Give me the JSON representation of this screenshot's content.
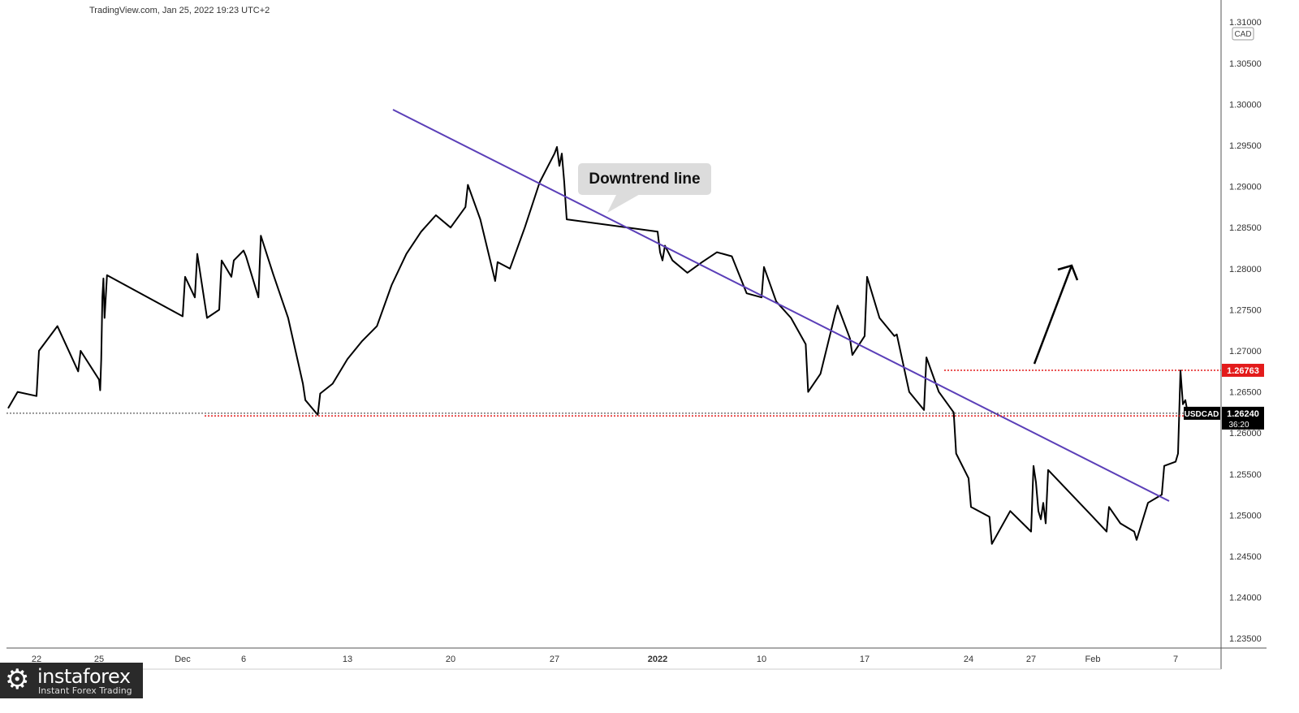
{
  "header": {
    "watermark": "TradingView.com, Jan 25, 2022 19:23 UTC+2"
  },
  "brand": {
    "logo_name": "instaforex",
    "tagline": "Instant Forex Trading",
    "icon": "gear-icon"
  },
  "colors": {
    "price_line": "#000000",
    "trend_line": "#5b3fb8",
    "level_red": "#e31b1b",
    "current_badge": "#000000",
    "axis_text": "#333333",
    "annotation_bg": "#dcdcdc"
  },
  "chart_data": {
    "type": "line",
    "symbol": "USDCAD",
    "currency": "CAD",
    "ylim": [
      1.232,
      1.315
    ],
    "y_ticks": [
      "1.31000",
      "1.30500",
      "1.30000",
      "1.29500",
      "1.29000",
      "1.28500",
      "1.28000",
      "1.27500",
      "1.27000",
      "1.26500",
      "1.26000",
      "1.25500",
      "1.25000",
      "1.24500",
      "1.24000",
      "1.23500"
    ],
    "x_ticks": [
      {
        "label": "22",
        "x": 2021.1122
      },
      {
        "label": "25",
        "x": 2021.1125
      },
      {
        "label": "Dec",
        "x": 2021.1201
      },
      {
        "label": "6",
        "x": 2021.1206
      },
      {
        "label": "13",
        "x": 2021.1213
      },
      {
        "label": "20",
        "x": 2021.122
      },
      {
        "label": "27",
        "x": 2021.1227
      },
      {
        "label": "2022",
        "x": 2022.0103
      },
      {
        "label": "10",
        "x": 2022.011
      },
      {
        "label": "17",
        "x": 2022.0117
      },
      {
        "label": "24",
        "x": 2022.0124
      },
      {
        "label": "27",
        "x": 2022.0127
      },
      {
        "label": "Feb",
        "x": 2022.0201
      },
      {
        "label": "7",
        "x": 2022.0207
      }
    ],
    "series": [
      {
        "name": "USDCAD",
        "points": [
          [
            2021.1119,
            1.263
          ],
          [
            2021.112,
            1.265
          ],
          [
            2021.1122,
            1.2645
          ],
          [
            2021.1122,
            1.27
          ],
          [
            2021.1123,
            1.273
          ],
          [
            2021.1124,
            1.2675
          ],
          [
            2021.1124,
            1.27
          ],
          [
            2021.1125,
            1.2665
          ],
          [
            2021.1126,
            1.2652
          ],
          [
            2021.1127,
            1.269
          ],
          [
            2021.1128,
            1.2765
          ],
          [
            2021.1129,
            1.2788
          ],
          [
            2021.113,
            1.274
          ],
          [
            2021.113,
            1.2792
          ],
          [
            2021.1201,
            1.2742
          ],
          [
            2021.1201,
            1.279
          ],
          [
            2021.1202,
            1.2765
          ],
          [
            2021.1202,
            1.2818
          ],
          [
            2021.1203,
            1.274
          ],
          [
            2021.1204,
            1.275
          ],
          [
            2021.1204,
            1.281
          ],
          [
            2021.1205,
            1.279
          ],
          [
            2021.1205,
            1.281
          ],
          [
            2021.1206,
            1.2822
          ],
          [
            2021.1206,
            1.2815
          ],
          [
            2021.1207,
            1.2765
          ],
          [
            2021.1207,
            1.284
          ],
          [
            2021.1208,
            1.2793
          ],
          [
            2021.1209,
            1.274
          ],
          [
            2021.121,
            1.266
          ],
          [
            2021.121,
            1.264
          ],
          [
            2021.1211,
            1.2622
          ],
          [
            2021.1211,
            1.2648
          ],
          [
            2021.1212,
            1.266
          ],
          [
            2021.1213,
            1.269
          ],
          [
            2021.1214,
            1.2712
          ],
          [
            2021.1215,
            1.273
          ],
          [
            2021.1216,
            1.278
          ],
          [
            2021.1217,
            1.2818
          ],
          [
            2021.1218,
            1.2845
          ],
          [
            2021.1219,
            1.2865
          ],
          [
            2021.122,
            1.285
          ],
          [
            2021.1221,
            1.2875
          ],
          [
            2021.1221,
            1.2902
          ],
          [
            2021.1222,
            1.286
          ],
          [
            2021.1223,
            1.2785
          ],
          [
            2021.1223,
            1.2808
          ],
          [
            2021.1224,
            1.28
          ],
          [
            2021.1225,
            1.285
          ],
          [
            2021.1226,
            1.2905
          ],
          [
            2021.1227,
            1.294
          ],
          [
            2021.1227,
            1.2948
          ],
          [
            2021.1228,
            1.2925
          ],
          [
            2021.1229,
            1.294
          ],
          [
            2021.123,
            1.2905
          ],
          [
            2021.1231,
            1.286
          ],
          [
            2022.0101,
            1.2845
          ],
          [
            2022.0101,
            1.282
          ],
          [
            2022.0102,
            1.281
          ],
          [
            2022.0103,
            1.2828
          ],
          [
            2022.0104,
            1.281
          ],
          [
            2022.0105,
            1.2795
          ],
          [
            2022.0106,
            1.2808
          ],
          [
            2022.0107,
            1.282
          ],
          [
            2022.0108,
            1.2815
          ],
          [
            2022.0109,
            1.277
          ],
          [
            2022.011,
            1.2765
          ],
          [
            2022.011,
            1.2802
          ],
          [
            2022.0111,
            1.276
          ],
          [
            2022.0112,
            1.274
          ],
          [
            2022.0113,
            1.2708
          ],
          [
            2022.0113,
            1.265
          ],
          [
            2022.0114,
            1.2672
          ],
          [
            2022.0115,
            1.2745
          ],
          [
            2022.0115,
            1.2755
          ],
          [
            2022.0116,
            1.2715
          ],
          [
            2022.0116,
            1.2695
          ],
          [
            2022.0117,
            1.2718
          ],
          [
            2022.0117,
            1.279
          ],
          [
            2022.0118,
            1.274
          ],
          [
            2022.0119,
            1.2718
          ],
          [
            2022.0119,
            1.272
          ],
          [
            2022.012,
            1.265
          ],
          [
            2022.0121,
            1.2628
          ],
          [
            2022.0121,
            1.2692
          ],
          [
            2022.0122,
            1.265
          ],
          [
            2022.0123,
            1.2625
          ],
          [
            2022.0123,
            1.2575
          ],
          [
            2022.0124,
            1.2545
          ],
          [
            2022.0124,
            1.251
          ],
          [
            2022.0125,
            1.2498
          ],
          [
            2022.0125,
            1.2465
          ],
          [
            2022.0126,
            1.2505
          ],
          [
            2022.0127,
            1.248
          ],
          [
            2022.0127,
            1.256
          ],
          [
            2022.0128,
            1.254
          ],
          [
            2022.0129,
            1.2505
          ],
          [
            2022.0129,
            1.2495
          ],
          [
            2022.013,
            1.2515
          ],
          [
            2022.0131,
            1.249
          ],
          [
            2022.0131,
            1.2555
          ],
          [
            2022.0201,
            1.2498
          ],
          [
            2022.0202,
            1.248
          ],
          [
            2022.0202,
            1.251
          ],
          [
            2022.0203,
            1.249
          ],
          [
            2022.0204,
            1.248
          ],
          [
            2022.0204,
            1.247
          ],
          [
            2022.0205,
            1.2515
          ],
          [
            2022.0206,
            1.2525
          ],
          [
            2022.0206,
            1.256
          ],
          [
            2022.0207,
            1.2565
          ],
          [
            2022.0207,
            1.2575
          ],
          [
            2022.0208,
            1.2676
          ],
          [
            2022.0209,
            1.2635
          ],
          [
            2022.021,
            1.264
          ],
          [
            2022.0211,
            1.2624
          ]
        ]
      }
    ],
    "annotations": [
      {
        "type": "trend_line",
        "color": "#5b3fb8",
        "from": [
          2021.1216,
          1.2995
        ],
        "to": [
          2022.0218,
          1.2518
        ]
      },
      {
        "type": "callout",
        "text": "Downtrend line"
      },
      {
        "type": "arrow_up",
        "from": [
          2022.0212,
          1.2688
        ],
        "to": [
          2022.0216,
          1.2807
        ]
      },
      {
        "type": "hline",
        "price": 1.26763,
        "label": "1.26763",
        "style": "dotted",
        "color": "#e31b1b"
      },
      {
        "type": "hline",
        "price": 1.26208,
        "label": "1.26208",
        "style": "dotted",
        "color": "#e31b1b"
      },
      {
        "type": "hline",
        "price": 1.2624,
        "style": "dotted",
        "color": "#333333"
      }
    ],
    "current_price": {
      "label": "USDCAD",
      "price": "1.26240",
      "countdown": "36:20"
    }
  }
}
